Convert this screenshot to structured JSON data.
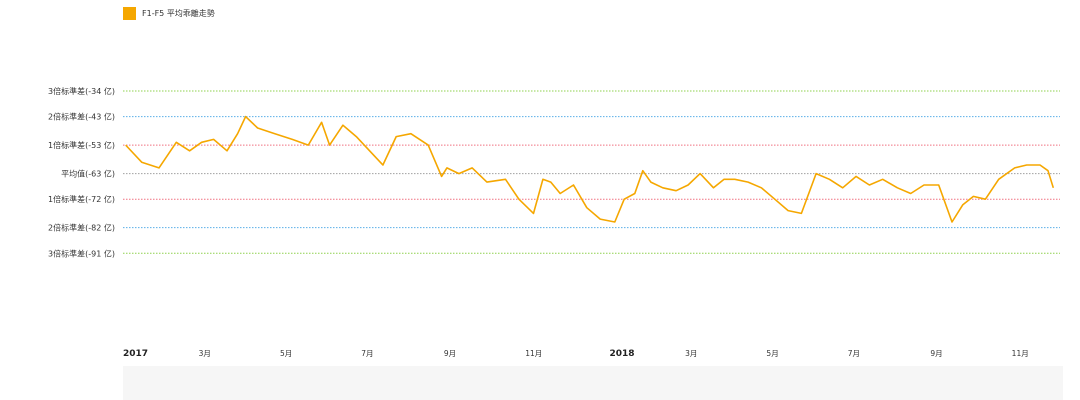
{
  "legend": {
    "label": "F1-F5 平均乖離走勢",
    "color": "#f5a700"
  },
  "chart_data": {
    "type": "line",
    "title": "",
    "series": [
      {
        "name": "F1-F5 平均乖離走勢",
        "color": "#f5a700",
        "x": [
          "2017-01-03",
          "2017-01-15",
          "2017-01-28",
          "2017-02-10",
          "2017-02-20",
          "2017-03-01",
          "2017-03-10",
          "2017-03-20",
          "2017-03-28",
          "2017-04-03",
          "2017-04-12",
          "2017-04-25",
          "2017-05-08",
          "2017-05-20",
          "2017-05-30",
          "2017-06-05",
          "2017-06-15",
          "2017-06-25",
          "2017-07-05",
          "2017-07-15",
          "2017-07-25",
          "2017-08-05",
          "2017-08-18",
          "2017-08-28",
          "2017-09-01",
          "2017-09-10",
          "2017-09-20",
          "2017-10-01",
          "2017-10-15",
          "2017-10-25",
          "2017-11-05",
          "2017-11-12",
          "2017-11-18",
          "2017-11-25",
          "2017-12-05",
          "2017-12-15",
          "2017-12-25",
          "2018-01-05",
          "2018-01-12",
          "2018-01-20",
          "2018-01-26",
          "2018-02-01",
          "2018-02-10",
          "2018-02-20",
          "2018-03-01",
          "2018-03-10",
          "2018-03-20",
          "2018-03-28",
          "2018-04-05",
          "2018-04-15",
          "2018-04-25",
          "2018-05-05",
          "2018-05-15",
          "2018-05-25",
          "2018-06-05",
          "2018-06-15",
          "2018-06-25",
          "2018-07-05",
          "2018-07-15",
          "2018-07-25",
          "2018-08-05",
          "2018-08-15",
          "2018-08-25",
          "2018-09-05",
          "2018-09-15",
          "2018-09-23",
          "2018-10-01",
          "2018-10-10",
          "2018-10-20",
          "2018-11-01",
          "2018-11-10",
          "2018-11-20",
          "2018-11-26",
          "2018-11-30"
        ],
        "values": [
          -53,
          -59,
          -61,
          -52,
          -55,
          -52,
          -51,
          -55,
          -49,
          -43,
          -47,
          -49,
          -51,
          -53,
          -45,
          -53,
          -46,
          -50,
          -55,
          -60,
          -50,
          -49,
          -53,
          -64,
          -61,
          -63,
          -61,
          -66,
          -65,
          -72,
          -77,
          -65,
          -66,
          -70,
          -67,
          -75,
          -79,
          -80,
          -72,
          -70,
          -62,
          -66,
          -68,
          -69,
          -67,
          -63,
          -68,
          -65,
          -65,
          -66,
          -68,
          -72,
          -76,
          -77,
          -63,
          -65,
          -68,
          -64,
          -67,
          -65,
          -68,
          -70,
          -67,
          -67,
          -80,
          -74,
          -71,
          -72,
          -65,
          -61,
          -60,
          -60,
          -62,
          -68
        ]
      }
    ],
    "bands": [
      {
        "label": "3倍标準差(-34 亿)",
        "value": -34,
        "color": "#8fd14f"
      },
      {
        "label": "2倍标準差(-43 亿)",
        "value": -43,
        "color": "#5aaee8"
      },
      {
        "label": "1倍标準差(-53 亿)",
        "value": -53,
        "color": "#f07080"
      },
      {
        "label": "平均值(-63 亿)",
        "value": -63,
        "color": "#a0a0a0"
      },
      {
        "label": "1倍标準差(-72 亿)",
        "value": -72,
        "color": "#f07080"
      },
      {
        "label": "2倍标準差(-82 亿)",
        "value": -82,
        "color": "#5aaee8"
      },
      {
        "label": "3倍标準差(-91 亿)",
        "value": -91,
        "color": "#8fd14f"
      }
    ],
    "x_ticks": [
      {
        "date": "2017-01-01",
        "label": "2017",
        "bold": true
      },
      {
        "date": "2017-03-01",
        "label": "3月"
      },
      {
        "date": "2017-05-01",
        "label": "5月"
      },
      {
        "date": "2017-07-01",
        "label": "7月"
      },
      {
        "date": "2017-09-01",
        "label": "9月"
      },
      {
        "date": "2017-11-01",
        "label": "11月"
      },
      {
        "date": "2018-01-01",
        "label": "2018",
        "bold": true
      },
      {
        "date": "2018-03-01",
        "label": "3月"
      },
      {
        "date": "2018-05-01",
        "label": "5月"
      },
      {
        "date": "2018-07-01",
        "label": "7月"
      },
      {
        "date": "2018-09-01",
        "label": "9月"
      },
      {
        "date": "2018-11-01",
        "label": "11月"
      }
    ],
    "xlim": [
      "2017-01-01",
      "2018-12-05"
    ],
    "ylim": [
      -106,
      -21
    ],
    "grid": "dotted reference lines at mean and ±1/2/3 standard deviations",
    "legend_position": "top-left"
  }
}
